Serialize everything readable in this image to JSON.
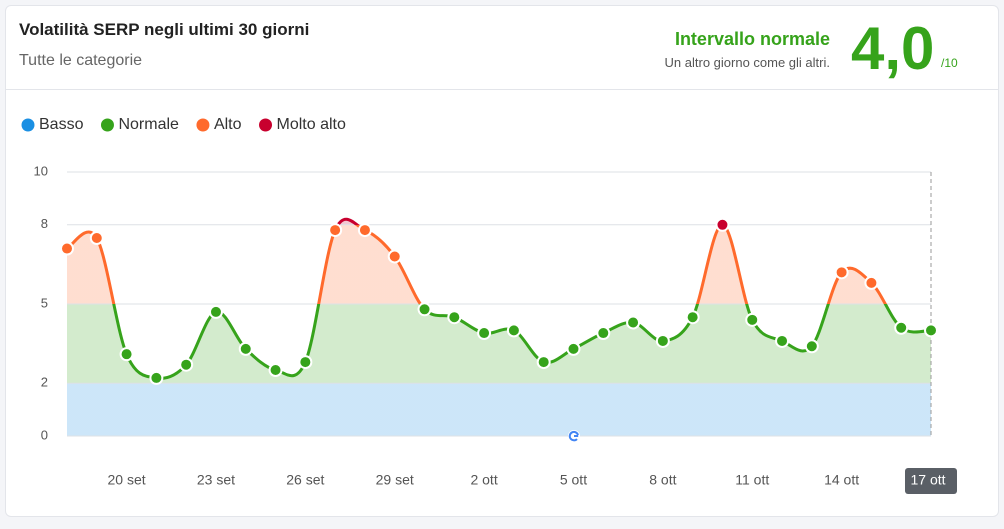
{
  "header": {
    "title": "Volatilità SERP negli ultimi 30 giorni",
    "subtitle": "Tutte le categorie"
  },
  "summary": {
    "status": "Intervallo normale",
    "note": "Un altro giorno come gli altri.",
    "score": "4,0",
    "scale": "/10"
  },
  "chart_data": {
    "type": "line",
    "legend": [
      {
        "name": "Basso",
        "color": "#1a8fe3",
        "range": [
          0,
          2
        ]
      },
      {
        "name": "Normale",
        "color": "#36a31b",
        "range": [
          2,
          5
        ]
      },
      {
        "name": "Alto",
        "color": "#ff6a2c",
        "range": [
          5,
          8
        ]
      },
      {
        "name": "Molto alto",
        "color": "#c8002e",
        "range": [
          8,
          10
        ]
      }
    ],
    "categories": [
      null,
      null,
      "20 set",
      null,
      null,
      "23 set",
      null,
      null,
      "26 set",
      null,
      null,
      "29 set",
      null,
      null,
      "2 ott",
      null,
      null,
      "5 ott",
      null,
      null,
      "8 ott",
      null,
      null,
      "11 ott",
      null,
      null,
      "14 ott",
      null,
      null,
      "17 ott"
    ],
    "values": [
      7.1,
      7.5,
      3.1,
      2.2,
      2.7,
      4.7,
      3.3,
      2.5,
      2.8,
      7.8,
      7.8,
      6.8,
      4.8,
      4.5,
      3.9,
      4.0,
      2.8,
      3.3,
      3.9,
      4.3,
      3.6,
      4.5,
      8.0,
      4.4,
      3.6,
      3.4,
      6.2,
      5.8,
      4.1,
      4.0
    ],
    "ylim": [
      0,
      10
    ],
    "yticks": [
      0,
      2,
      5,
      8,
      10
    ],
    "grid": true
  }
}
